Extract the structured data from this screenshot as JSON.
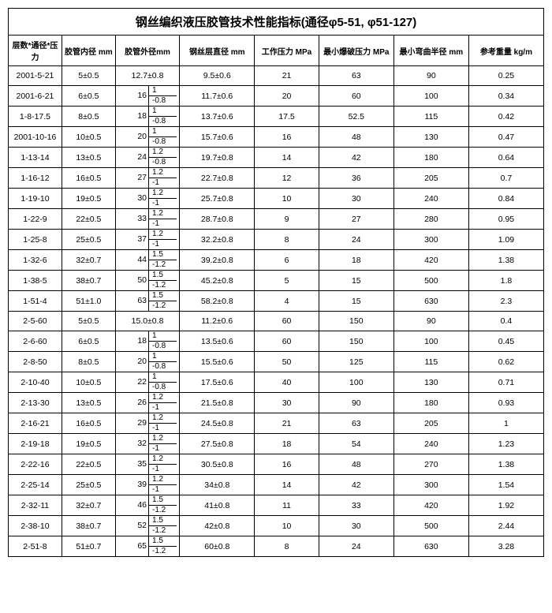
{
  "title": "钢丝编织液压胶管技术性能指标(通径φ5-51, φ51-127)",
  "headers": [
    "层数*通径*压力",
    "胶管内径 mm",
    "胶管外径mm",
    "钢丝层直径 mm",
    "工作压力 MPa",
    "最小爆破压力 MPa",
    "最小弯曲半径 mm",
    "参考重量 kg/m"
  ],
  "rows": [
    {
      "c1": "2001-5-21",
      "c2": "5±0.5",
      "c3": "12.7±0.8",
      "c4": "9.5±0.6",
      "c5": "21",
      "c6": "63",
      "c7": "90",
      "c8": "0.25"
    },
    {
      "c1": "2001-6-21",
      "c2": "6±0.5",
      "c3": {
        "main": "16",
        "t": "1",
        "b": "-0.8"
      },
      "c4": "11.7±0.6",
      "c5": "20",
      "c6": "60",
      "c7": "100",
      "c8": "0.34"
    },
    {
      "c1": "1-8-17.5",
      "c2": "8±0.5",
      "c3": {
        "main": "18",
        "t": "1",
        "b": "-0.8"
      },
      "c4": "13.7±0.6",
      "c5": "17.5",
      "c6": "52.5",
      "c7": "115",
      "c8": "0.42"
    },
    {
      "c1": "2001-10-16",
      "c2": "10±0.5",
      "c3": {
        "main": "20",
        "t": "1",
        "b": "-0.8"
      },
      "c4": "15.7±0.6",
      "c5": "16",
      "c6": "48",
      "c7": "130",
      "c8": "0.47"
    },
    {
      "c1": "1-13-14",
      "c2": "13±0.5",
      "c3": {
        "main": "24",
        "t": "1.2",
        "b": "-0.8"
      },
      "c4": "19.7±0.8",
      "c5": "14",
      "c6": "42",
      "c7": "180",
      "c8": "0.64"
    },
    {
      "c1": "1-16-12",
      "c2": "16±0.5",
      "c3": {
        "main": "27",
        "t": "1.2",
        "b": "-1"
      },
      "c4": "22.7±0.8",
      "c5": "12",
      "c6": "36",
      "c7": "205",
      "c8": "0.7"
    },
    {
      "c1": "1-19-10",
      "c2": "19±0.5",
      "c3": {
        "main": "30",
        "t": "1.2",
        "b": "-1"
      },
      "c4": "25.7±0.8",
      "c5": "10",
      "c6": "30",
      "c7": "240",
      "c8": "0.84"
    },
    {
      "c1": "1-22-9",
      "c2": "22±0.5",
      "c3": {
        "main": "33",
        "t": "1.2",
        "b": "-1"
      },
      "c4": "28.7±0.8",
      "c5": "9",
      "c6": "27",
      "c7": "280",
      "c8": "0.95"
    },
    {
      "c1": "1-25-8",
      "c2": "25±0.5",
      "c3": {
        "main": "37",
        "t": "1.2",
        "b": "-1"
      },
      "c4": "32.2±0.8",
      "c5": "8",
      "c6": "24",
      "c7": "300",
      "c8": "1.09"
    },
    {
      "c1": "1-32-6",
      "c2": "32±0.7",
      "c3": {
        "main": "44",
        "t": "1.5",
        "b": "-1.2"
      },
      "c4": "39.2±0.8",
      "c5": "6",
      "c6": "18",
      "c7": "420",
      "c8": "1.38"
    },
    {
      "c1": "1-38-5",
      "c2": "38±0.7",
      "c3": {
        "main": "50",
        "t": "1.5",
        "b": "-1.2"
      },
      "c4": "45.2±0.8",
      "c5": "5",
      "c6": "15",
      "c7": "500",
      "c8": "1.8"
    },
    {
      "c1": "1-51-4",
      "c2": "51±1.0",
      "c3": {
        "main": "63",
        "t": "1.5",
        "b": "-1.2"
      },
      "c4": "58.2±0.8",
      "c5": "4",
      "c6": "15",
      "c7": "630",
      "c8": "2.3"
    },
    {
      "c1": "2-5-60",
      "c2": "5±0.5",
      "c3": "15.0±0.8",
      "c4": "11.2±0.6",
      "c5": "60",
      "c6": "150",
      "c7": "90",
      "c8": "0.4"
    },
    {
      "c1": "2-6-60",
      "c2": "6±0.5",
      "c3": {
        "main": "18",
        "t": "1",
        "b": "-0.8"
      },
      "c4": "13.5±0.6",
      "c5": "60",
      "c6": "150",
      "c7": "100",
      "c8": "0.45"
    },
    {
      "c1": "2-8-50",
      "c2": "8±0.5",
      "c3": {
        "main": "20",
        "t": "1",
        "b": "-0.8"
      },
      "c4": "15.5±0.6",
      "c5": "50",
      "c6": "125",
      "c7": "115",
      "c8": "0.62"
    },
    {
      "c1": "2-10-40",
      "c2": "10±0.5",
      "c3": {
        "main": "22",
        "t": "1",
        "b": "-0.8"
      },
      "c4": "17.5±0.6",
      "c5": "40",
      "c6": "100",
      "c7": "130",
      "c8": "0.71"
    },
    {
      "c1": "2-13-30",
      "c2": "13±0.5",
      "c3": {
        "main": "26",
        "t": "1.2",
        "b": "-1"
      },
      "c4": "21.5±0.8",
      "c5": "30",
      "c6": "90",
      "c7": "180",
      "c8": "0.93"
    },
    {
      "c1": "2-16-21",
      "c2": "16±0.5",
      "c3": {
        "main": "29",
        "t": "1.2",
        "b": "-1"
      },
      "c4": "24.5±0.8",
      "c5": "21",
      "c6": "63",
      "c7": "205",
      "c8": "1"
    },
    {
      "c1": "2-19-18",
      "c2": "19±0.5",
      "c3": {
        "main": "32",
        "t": "1.2",
        "b": "-1"
      },
      "c4": "27.5±0.8",
      "c5": "18",
      "c6": "54",
      "c7": "240",
      "c8": "1.23"
    },
    {
      "c1": "2-22-16",
      "c2": "22±0.5",
      "c3": {
        "main": "35",
        "t": "1.2",
        "b": "-1"
      },
      "c4": "30.5±0.8",
      "c5": "16",
      "c6": "48",
      "c7": "270",
      "c8": "1.38"
    },
    {
      "c1": "2-25-14",
      "c2": "25±0.5",
      "c3": {
        "main": "39",
        "t": "1.2",
        "b": "-1"
      },
      "c4": "34±0.8",
      "c5": "14",
      "c6": "42",
      "c7": "300",
      "c8": "1.54"
    },
    {
      "c1": "2-32-11",
      "c2": "32±0.7",
      "c3": {
        "main": "46",
        "t": "1.5",
        "b": "-1.2"
      },
      "c4": "41±0.8",
      "c5": "11",
      "c6": "33",
      "c7": "420",
      "c8": "1.92"
    },
    {
      "c1": "2-38-10",
      "c2": "38±0.7",
      "c3": {
        "main": "52",
        "t": "1.5",
        "b": "-1.2"
      },
      "c4": "42±0.8",
      "c5": "10",
      "c6": "30",
      "c7": "500",
      "c8": "2.44"
    },
    {
      "c1": "2-51-8",
      "c2": "51±0.7",
      "c3": {
        "main": "65",
        "t": "1.5",
        "b": "-1.2"
      },
      "c4": "60±0.8",
      "c5": "8",
      "c6": "24",
      "c7": "630",
      "c8": "3.28"
    }
  ]
}
